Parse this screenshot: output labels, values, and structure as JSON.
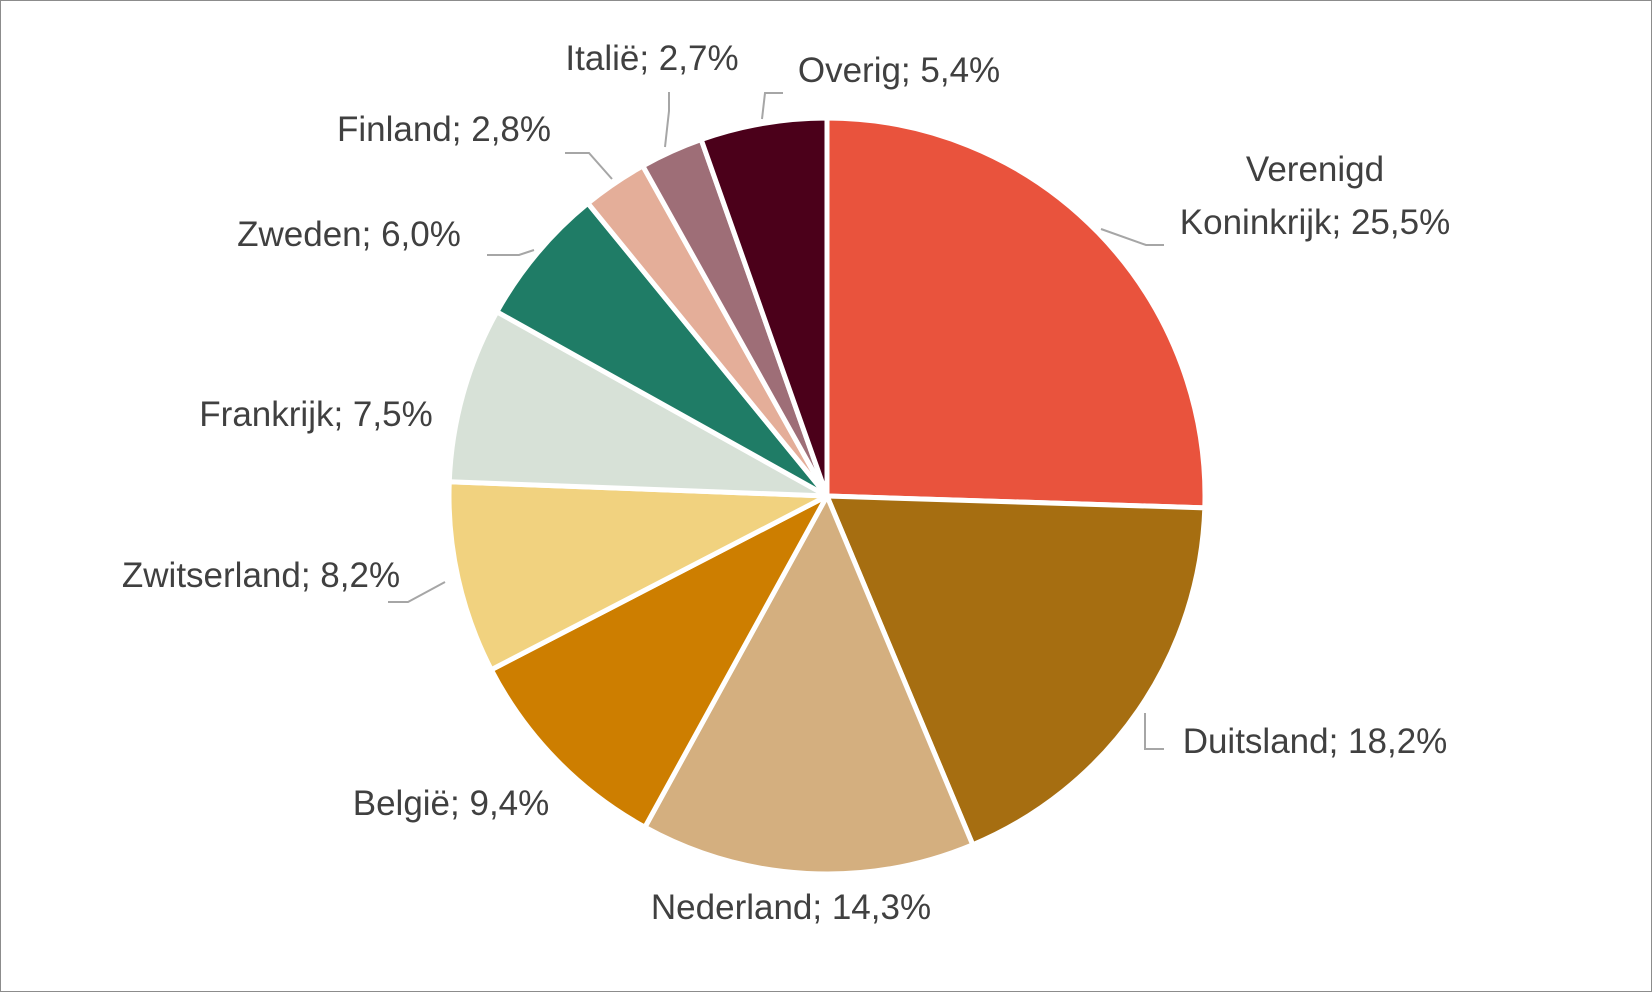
{
  "chart_data": {
    "type": "pie",
    "title": "",
    "start_angle_deg": 0,
    "direction": "clockwise",
    "slices": [
      {
        "label": "Verenigd Koninkrijk",
        "value": 25.5,
        "display": "25,5%",
        "color": "#E9533D"
      },
      {
        "label": "Duitsland",
        "value": 18.2,
        "display": "18,2%",
        "color": "#A66E11"
      },
      {
        "label": "Nederland",
        "value": 14.3,
        "display": "14,3%",
        "color": "#D4AF7F"
      },
      {
        "label": "België",
        "value": 9.4,
        "display": "9,4%",
        "color": "#CD7E00"
      },
      {
        "label": "Zwitserland",
        "value": 8.2,
        "display": "8,2%",
        "color": "#F1D27F"
      },
      {
        "label": "Frankrijk",
        "value": 7.5,
        "display": "7,5%",
        "color": "#D7E1D7"
      },
      {
        "label": "Zweden",
        "value": 6.0,
        "display": "6,0%",
        "color": "#1F7C66"
      },
      {
        "label": "Finland",
        "value": 2.8,
        "display": "2,8%",
        "color": "#E4AE99"
      },
      {
        "label": "Italië",
        "value": 2.7,
        "display": "2,7%",
        "color": "#9E6E77"
      },
      {
        "label": "Overig",
        "value": 5.4,
        "display": "5,4%",
        "color": "#4B001A"
      }
    ],
    "legend": "none",
    "data_labels": "category; percentage"
  }
}
